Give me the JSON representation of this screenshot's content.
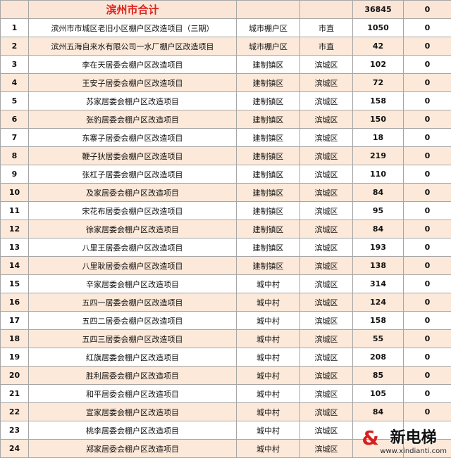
{
  "table": {
    "total": {
      "label": "滨州市合计",
      "count": 36845,
      "extra": 0
    },
    "rows": [
      [
        1,
        "滨州市市城区老旧小区棚户区改造项目（三期）",
        "城市棚户区",
        "市直",
        1050,
        0
      ],
      [
        2,
        "滨州五海自来水有限公司一水厂棚户区改造项目",
        "城市棚户区",
        "市直",
        42,
        0
      ],
      [
        3,
        "李在天居委会棚户区改造项目",
        "建制镇区",
        "滨城区",
        102,
        0
      ],
      [
        4,
        "王安子居委会棚户区改造项目",
        "建制镇区",
        "滨城区",
        72,
        0
      ],
      [
        5,
        "苏家居委会棚户区改造项目",
        "建制镇区",
        "滨城区",
        158,
        0
      ],
      [
        6,
        "张豹居委会棚户区改造项目",
        "建制镇区",
        "滨城区",
        150,
        0
      ],
      [
        7,
        "东寨子居委会棚户区改造项目",
        "建制镇区",
        "滨城区",
        18,
        0
      ],
      [
        8,
        "鞭子狄居委会棚户区改造项目",
        "建制镇区",
        "滨城区",
        219,
        0
      ],
      [
        9,
        "张杠子居委会棚户区改造项目",
        "建制镇区",
        "滨城区",
        110,
        0
      ],
      [
        10,
        "及家居委会棚户区改造项目",
        "建制镇区",
        "滨城区",
        84,
        0
      ],
      [
        11,
        "宋花布居委会棚户区改造项目",
        "建制镇区",
        "滨城区",
        95,
        0
      ],
      [
        12,
        "徐家居委会棚户区改造项目",
        "建制镇区",
        "滨城区",
        84,
        0
      ],
      [
        13,
        "八里王居委会棚户区改造项目",
        "建制镇区",
        "滨城区",
        193,
        0
      ],
      [
        14,
        "八里耿居委会棚户区改造项目",
        "建制镇区",
        "滨城区",
        138,
        0
      ],
      [
        15,
        "辛家居委会棚户区改造项目",
        "城中村",
        "滨城区",
        314,
        0
      ],
      [
        16,
        "五四一居委会棚户区改造项目",
        "城中村",
        "滨城区",
        124,
        0
      ],
      [
        17,
        "五四二居委会棚户区改造项目",
        "城中村",
        "滨城区",
        158,
        0
      ],
      [
        18,
        "五四三居委会棚户区改造项目",
        "城中村",
        "滨城区",
        55,
        0
      ],
      [
        19,
        "红旗居委会棚户区改造项目",
        "城中村",
        "滨城区",
        208,
        0
      ],
      [
        20,
        "胜利居委会棚户区改造项目",
        "城中村",
        "滨城区",
        85,
        0
      ],
      [
        21,
        "和平居委会棚户区改造项目",
        "城中村",
        "滨城区",
        105,
        0
      ],
      [
        22,
        "宣家居委会棚户区改造项目",
        "城中村",
        "滨城区",
        84,
        0
      ],
      [
        23,
        "桃李居委会棚户区改造项目",
        "城中村",
        "滨城区",
        null,
        null
      ],
      [
        24,
        "郑家居委会棚户区改造项目",
        "城中村",
        "滨城区",
        null,
        null
      ]
    ]
  },
  "watermark": {
    "brand": "新电梯",
    "url": "www.xindianti.com"
  }
}
